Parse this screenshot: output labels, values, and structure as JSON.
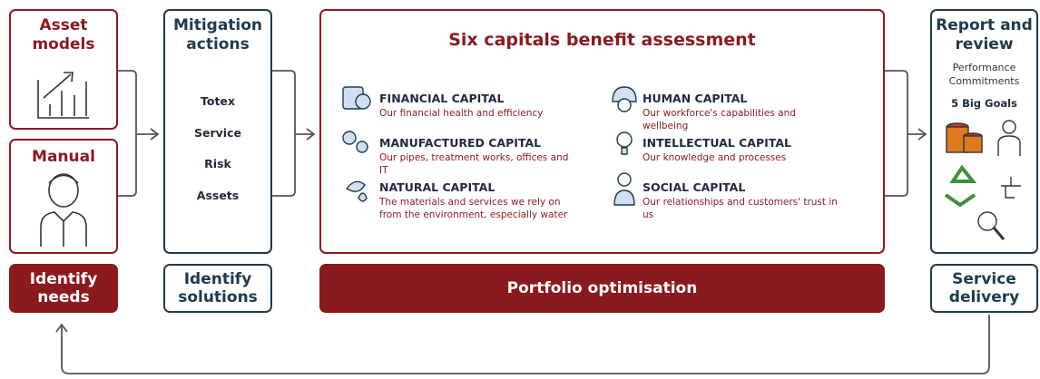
{
  "needs": {
    "boxes": [
      {
        "title": "Asset models"
      },
      {
        "title": "Manual"
      }
    ],
    "label": "Identify needs"
  },
  "solutions": {
    "title": "Mitigation actions",
    "items": [
      "Totex",
      "Service",
      "Risk",
      "Assets"
    ],
    "label": "Identify solutions"
  },
  "assessment": {
    "title": "Six capitals benefit assessment",
    "capitals": [
      {
        "name": "FINANCIAL CAPITAL",
        "description": "Our financial health and efficiency"
      },
      {
        "name": "HUMAN CAPITAL",
        "description": "Our workforce's capabilities and wellbeing"
      },
      {
        "name": "MANUFACTURED CAPITAL",
        "description": "Our pipes, treatment works, offices and IT"
      },
      {
        "name": "INTELLECTUAL CAPITAL",
        "description": "Our knowledge and processes"
      },
      {
        "name": "NATURAL CAPITAL",
        "description": "The materials and services we rely on from the environment, especially water"
      },
      {
        "name": "SOCIAL CAPITAL",
        "description": "Our relationships and customers' trust in us"
      }
    ],
    "label": "Portfolio optimisation"
  },
  "delivery": {
    "title": "Report and review",
    "subtitle": "Performance Commitments",
    "goals": "5 Big Goals",
    "label": "Service delivery"
  }
}
